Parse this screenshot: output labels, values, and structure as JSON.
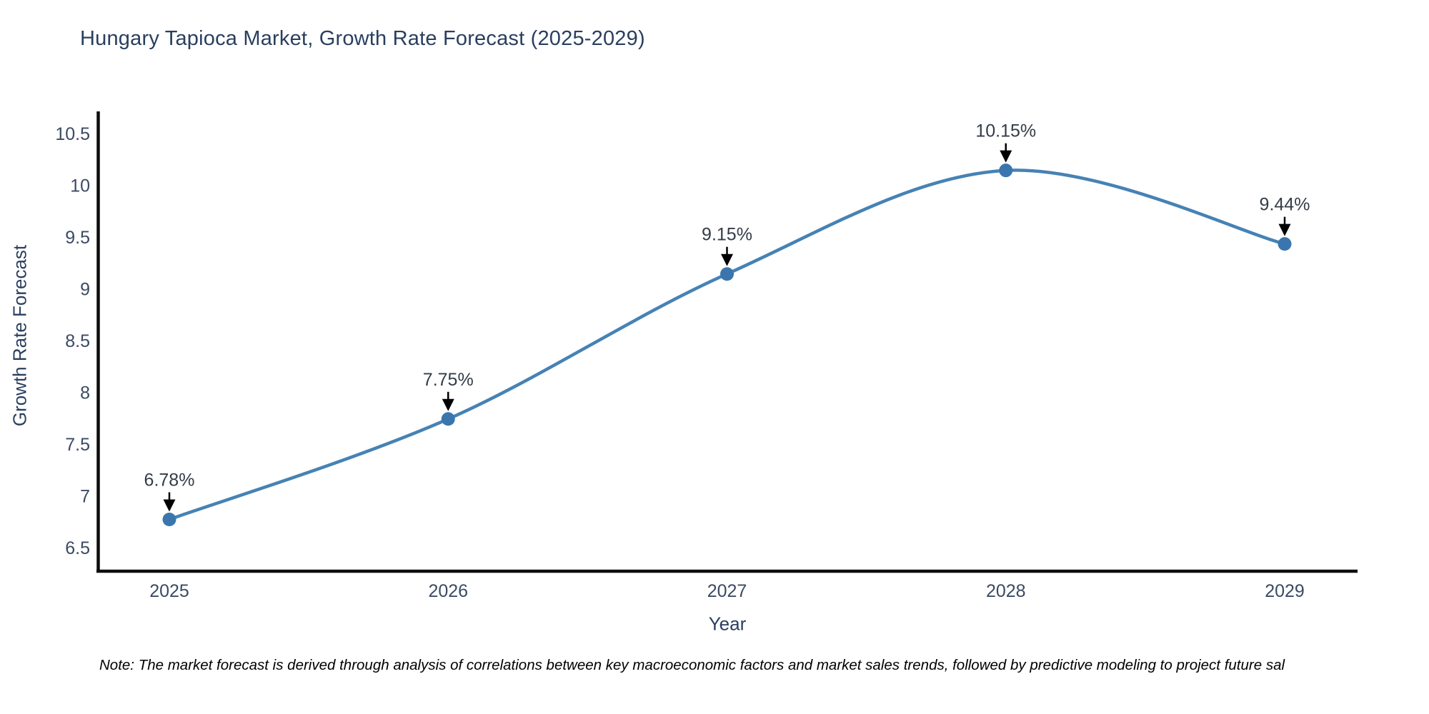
{
  "title": "Hungary Tapioca Market, Growth Rate Forecast (2025-2029)",
  "chart_data": {
    "type": "line",
    "title": "Hungary Tapioca Market, Growth Rate Forecast (2025-2029)",
    "x": [
      2025,
      2026,
      2027,
      2028,
      2029
    ],
    "series": [
      {
        "name": "Growth Rate Forecast",
        "values": [
          6.78,
          7.75,
          9.15,
          10.15,
          9.44
        ]
      }
    ],
    "point_labels": [
      "6.78%",
      "7.75%",
      "9.15%",
      "10.15%",
      "9.44%"
    ],
    "xlabel": "Year",
    "ylabel": "Growth Rate Forecast",
    "yticks": [
      6.5,
      7,
      7.5,
      8,
      8.5,
      9,
      9.5,
      10,
      10.5
    ],
    "ylim": [
      6.28,
      10.72
    ],
    "xlim": [
      2024.74,
      2029.26
    ],
    "grid": false,
    "legend": "none",
    "line_style": "smooth-spline",
    "marker": "circle",
    "annotations": "value labels with down arrows above each point",
    "colors": {
      "line": "#4682b4",
      "marker": "#3a76ad",
      "arrow": "#000000",
      "axis": "#0d0d0d",
      "tick_text": "#3b4a63",
      "title_text": "#2a3f5f",
      "background": "#ffffff"
    }
  },
  "note": "Note: The market forecast is derived through analysis of correlations between key macroeconomic factors and market sales trends, followed by predictive modeling to project future sal"
}
